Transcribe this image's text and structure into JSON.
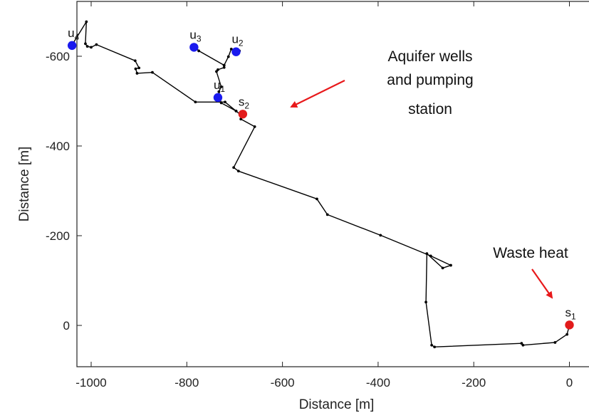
{
  "chart_data": {
    "type": "line",
    "title": "",
    "xlabel": "Distance [m]",
    "ylabel": "Distance [m]",
    "xlim": [
      -1090,
      30
    ],
    "ylim": [
      -90,
      715
    ],
    "x_ticks": [
      -1000,
      -800,
      -600,
      -400,
      -200,
      0
    ],
    "y_ticks": [
      600,
      400,
      200,
      0
    ],
    "x_tick_labels": [
      "-1000",
      "-800",
      "-600",
      "-400",
      "-200",
      "0"
    ],
    "y_tick_labels": [
      "-600",
      "-400",
      "-200",
      "0"
    ],
    "grid": false,
    "line_color": "#000000",
    "paths": [
      [
        [
          0,
          0
        ],
        [
          -5,
          -20
        ],
        [
          -30,
          -38
        ],
        [
          -97,
          -44
        ],
        [
          -100,
          -40
        ],
        [
          -282,
          -48
        ],
        [
          -288,
          -44
        ],
        [
          -300,
          52
        ],
        [
          -298,
          160
        ],
        [
          -265,
          128
        ],
        [
          -248,
          134
        ],
        [
          -290,
          155
        ],
        [
          -395,
          201
        ],
        [
          -506,
          247
        ],
        [
          -528,
          282
        ],
        [
          -692,
          344
        ],
        [
          -702,
          352
        ],
        [
          -658,
          443
        ],
        [
          -687,
          460
        ],
        [
          -683,
          468
        ],
        [
          -688,
          470
        ],
        [
          -697,
          478
        ],
        [
          -720,
          498
        ],
        [
          -782,
          498
        ],
        [
          -872,
          564
        ],
        [
          -904,
          562
        ],
        [
          -907,
          572
        ],
        [
          -900,
          574
        ],
        [
          -908,
          590
        ],
        [
          -989,
          626
        ],
        [
          -1000,
          620
        ],
        [
          -1008,
          622
        ],
        [
          -1012,
          628
        ],
        [
          -1010,
          677
        ],
        [
          -1040,
          625
        ]
      ],
      [
        [
          -697,
          478
        ],
        [
          -728,
          496
        ],
        [
          -733,
          521
        ],
        [
          -728,
          532
        ],
        [
          -738,
          566
        ],
        [
          -735,
          570
        ],
        [
          -722,
          575
        ],
        [
          -722,
          580
        ],
        [
          -713,
          599
        ],
        [
          -707,
          616
        ],
        [
          -690,
          612
        ]
      ],
      [
        [
          -722,
          580
        ],
        [
          -775,
          612
        ],
        [
          -782,
          620
        ]
      ]
    ],
    "nodes": [
      {
        "x": -1040,
        "y": 624,
        "color": "#1a1aee",
        "label": "u",
        "sub": "4"
      },
      {
        "x": -785,
        "y": 620,
        "color": "#1a1aee",
        "label": "u",
        "sub": "3"
      },
      {
        "x": -697,
        "y": 610,
        "color": "#1a1aee",
        "label": "u",
        "sub": "2"
      },
      {
        "x": -735,
        "y": 508,
        "color": "#1a1aee",
        "label": "u",
        "sub": "1"
      },
      {
        "x": -683,
        "y": 471,
        "color": "#e21b1b",
        "label": "s",
        "sub": "2"
      },
      {
        "x": 0,
        "y": 1,
        "color": "#e21b1b",
        "label": "s",
        "sub": "1"
      }
    ],
    "annotations": [
      {
        "lines": [
          "Aquifer wells",
          "and pumping",
          "station"
        ],
        "arrow_color": "#e8191b"
      },
      {
        "lines": [
          "Waste heat"
        ],
        "arrow_color": "#e8191b"
      }
    ]
  }
}
